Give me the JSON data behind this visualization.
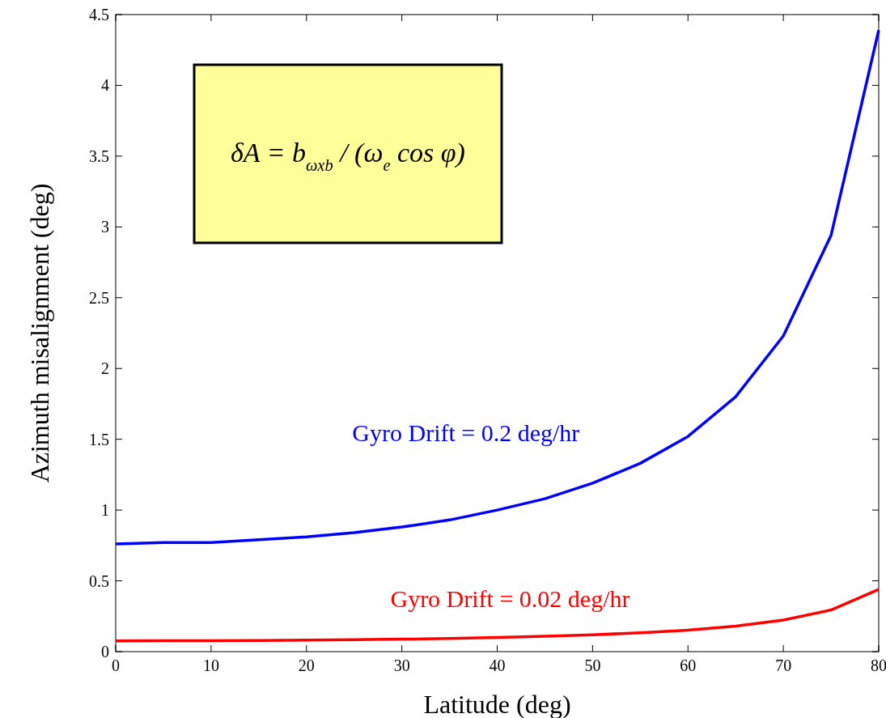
{
  "chart_data": {
    "type": "line",
    "xlabel": "Latitude (deg)",
    "ylabel": "Azimuth misalignment (deg)",
    "x": [
      0,
      5,
      10,
      15,
      20,
      25,
      30,
      35,
      40,
      45,
      50,
      55,
      60,
      65,
      70,
      75,
      80
    ],
    "series": [
      {
        "name": "Gyro Drift = 0.2 deg/hr",
        "color": "#0000ff",
        "values": [
          0.76,
          0.77,
          0.77,
          0.79,
          0.81,
          0.84,
          0.88,
          0.93,
          1.0,
          1.08,
          1.19,
          1.33,
          1.52,
          1.8,
          2.23,
          2.94,
          4.39
        ]
      },
      {
        "name": "Gyro Drift = 0.02 deg/hr",
        "color": "#ff0000",
        "values": [
          0.076,
          0.077,
          0.077,
          0.079,
          0.081,
          0.084,
          0.088,
          0.093,
          0.1,
          0.108,
          0.119,
          0.133,
          0.152,
          0.18,
          0.223,
          0.294,
          0.439
        ]
      }
    ],
    "xlim": [
      0,
      80
    ],
    "xticks": [
      0,
      10,
      20,
      30,
      40,
      50,
      60,
      70,
      80
    ],
    "ylim": [
      0,
      4.5
    ],
    "yticks": [
      0,
      0.5,
      1,
      1.5,
      2,
      2.5,
      3,
      3.5,
      4,
      4.5
    ],
    "annotations": [
      "δA = b$_{ωxb}$ / (ω$_{e}$ cos φ)"
    ],
    "legend": false,
    "grid": false,
    "marker": "none",
    "line_style": "solid"
  }
}
